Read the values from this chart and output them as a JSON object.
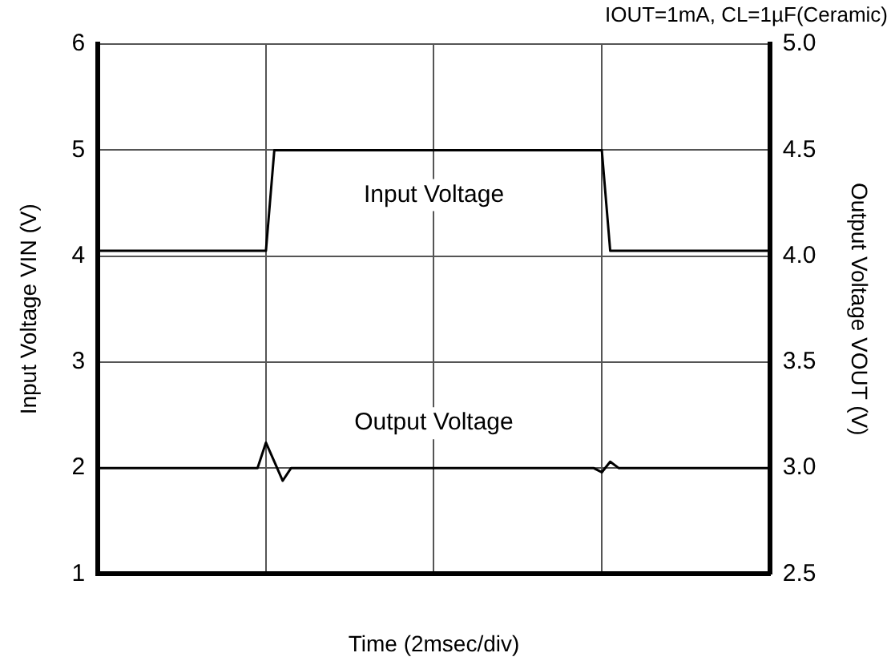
{
  "chart_data": {
    "type": "line",
    "title": "IOUT=1mA, CL=1µF(Ceramic)",
    "xlabel": "Time (2msec/div)",
    "ylabel": "Input Voltage VIN (V)",
    "y2label": "Output Voltage VOUT (V)",
    "categories": [
      null,
      null,
      null,
      null,
      null,
      null,
      null,
      null,
      null,
      null,
      null,
      null,
      null,
      null,
      null,
      null,
      null,
      null,
      null,
      null,
      null,
      null,
      null,
      null,
      null,
      null,
      null,
      null,
      null,
      null,
      null,
      null,
      null,
      null,
      null,
      null,
      null,
      null,
      null,
      null,
      null,
      null,
      null,
      null,
      null,
      null,
      null,
      null,
      null,
      null,
      null,
      null,
      null,
      null,
      null,
      null,
      null,
      null,
      null,
      null,
      null,
      null,
      null,
      null,
      null,
      null,
      null,
      null,
      null,
      null,
      null,
      null,
      null,
      null,
      null,
      null,
      null,
      null,
      null,
      null,
      null
    ],
    "ylim": [
      1,
      6
    ],
    "yticks": [
      1,
      2,
      3,
      4,
      5,
      6
    ],
    "y2lim": [
      2.5,
      5.0
    ],
    "y2ticks": [
      {
        "value": 2.5,
        "label": "2.5"
      },
      {
        "value": 3,
        "label": "3.0"
      },
      {
        "value": 3.5,
        "label": "3.5"
      },
      {
        "value": 4,
        "label": "4.0"
      },
      {
        "value": 4.5,
        "label": "4.5"
      },
      {
        "value": 5,
        "label": "5.0"
      }
    ],
    "grid": true,
    "legend": false,
    "marker": "none",
    "line_style": "solid",
    "series": [
      {
        "name": "Input Voltage",
        "color": "#000000",
        "values": [
          4.05,
          4.05,
          4.05,
          4.05,
          4.05,
          4.05,
          4.05,
          4.05,
          4.05,
          4.05,
          4.05,
          4.05,
          4.05,
          4.05,
          4.05,
          4.05,
          4.05,
          4.05,
          4.05,
          4.05,
          4.05,
          5.0,
          5.0,
          5.0,
          5.0,
          5.0,
          5.0,
          5.0,
          5.0,
          5.0,
          5.0,
          5.0,
          5.0,
          5.0,
          5.0,
          5.0,
          5.0,
          5.0,
          5.0,
          5.0,
          5.0,
          5.0,
          5.0,
          5.0,
          5.0,
          5.0,
          5.0,
          5.0,
          5.0,
          5.0,
          5.0,
          5.0,
          5.0,
          5.0,
          5.0,
          5.0,
          5.0,
          5.0,
          5.0,
          5.0,
          5.0,
          4.05,
          4.05,
          4.05,
          4.05,
          4.05,
          4.05,
          4.05,
          4.05,
          4.05,
          4.05,
          4.05,
          4.05,
          4.05,
          4.05,
          4.05,
          4.05,
          4.05,
          4.05,
          4.05,
          4.05
        ]
      },
      {
        "name": "Output Voltage",
        "color": "#000000",
        "axis": "y2",
        "values": [
          3.0,
          3.0,
          3.0,
          3.0,
          3.0,
          3.0,
          3.0,
          3.0,
          3.0,
          3.0,
          3.0,
          3.0,
          3.0,
          3.0,
          3.0,
          3.0,
          3.0,
          3.0,
          3.0,
          3.0,
          3.12,
          3.03,
          2.94,
          3.0,
          3.0,
          3.0,
          3.0,
          3.0,
          3.0,
          3.0,
          3.0,
          3.0,
          3.0,
          3.0,
          3.0,
          3.0,
          3.0,
          3.0,
          3.0,
          3.0,
          3.0,
          3.0,
          3.0,
          3.0,
          3.0,
          3.0,
          3.0,
          3.0,
          3.0,
          3.0,
          3.0,
          3.0,
          3.0,
          3.0,
          3.0,
          3.0,
          3.0,
          3.0,
          3.0,
          3.0,
          2.98,
          3.03,
          3.0,
          3.0,
          3.0,
          3.0,
          3.0,
          3.0,
          3.0,
          3.0,
          3.0,
          3.0,
          3.0,
          3.0,
          3.0,
          3.0,
          3.0,
          3.0,
          3.0,
          3.0,
          3.0
        ]
      }
    ]
  }
}
